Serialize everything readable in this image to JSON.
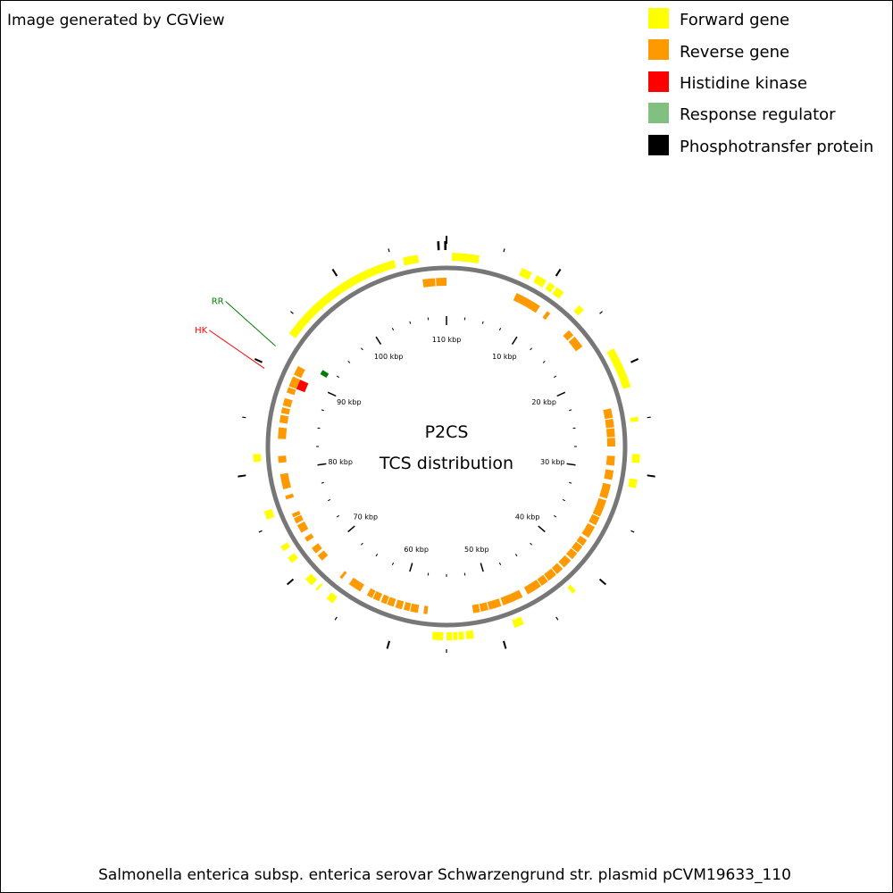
{
  "header": {
    "credit": "Image generated by CGView"
  },
  "legend": {
    "items": [
      {
        "key": "forward",
        "label": "Forward gene",
        "color": "#ffff00"
      },
      {
        "key": "reverse",
        "label": "Reverse gene",
        "color": "#ff9900"
      },
      {
        "key": "hk",
        "label": "Histidine kinase",
        "color": "#ff0000"
      },
      {
        "key": "rr",
        "label": "Response regulator",
        "color": "#80c080"
      },
      {
        "key": "phospho",
        "label": "Phosphotransfer protein",
        "color": "#000000"
      }
    ]
  },
  "map": {
    "title_line1": "P2CS",
    "title_line2": "TCS distribution",
    "footer": "Salmonella enterica subsp. enterica serovar Schwarzengrund str. plasmid pCVM19633_110",
    "backbone_color": "#777777",
    "total_kbp": 110,
    "tick_labels": [
      "10 kbp",
      "20 kbp",
      "30 kbp",
      "40 kbp",
      "50 kbp",
      "60 kbp",
      "70 kbp",
      "80 kbp",
      "90 kbp",
      "100 kbp",
      "110 kbp"
    ],
    "tcs_labels": [
      {
        "text": "RR",
        "color": "#008000",
        "kbp": 91.8
      },
      {
        "text": "HK",
        "color": "#ff0000",
        "kbp": 89.6
      }
    ],
    "forward_genes": [
      [
        0.5,
        3.0
      ],
      [
        7.0,
        8.0
      ],
      [
        8.5,
        9.5
      ],
      [
        9.8,
        10.4
      ],
      [
        10.6,
        11.4
      ],
      [
        13.2,
        13.8
      ],
      [
        18.2,
        22.0
      ],
      [
        24.8,
        25.2
      ],
      [
        28.2,
        29.0
      ],
      [
        30.5,
        31.3
      ],
      [
        42.2,
        42.6
      ],
      [
        47.8,
        48.7
      ],
      [
        52.5,
        53.2
      ],
      [
        53.4,
        53.9
      ],
      [
        54.0,
        54.4
      ],
      [
        54.5,
        55.0
      ],
      [
        55.3,
        56.3
      ],
      [
        66.0,
        66.7
      ],
      [
        67.8,
        68.0
      ],
      [
        68.5,
        69.3
      ],
      [
        71.2,
        71.8
      ],
      [
        72.5,
        73.0
      ],
      [
        75.7,
        76.5
      ],
      [
        81.1,
        81.8
      ],
      [
        93.4,
        105.2
      ],
      [
        106.0,
        107.4
      ]
    ],
    "reverse_genes": [
      [
        7.5,
        10.3
      ],
      [
        11.2,
        11.6
      ],
      [
        14.2,
        14.9
      ],
      [
        15.1,
        16.4
      ],
      [
        23.5,
        24.5
      ],
      [
        24.6,
        25.5
      ],
      [
        25.6,
        26.5
      ],
      [
        26.6,
        27.5
      ],
      [
        28.5,
        29.5
      ],
      [
        30.0,
        31.0
      ],
      [
        31.5,
        33.0
      ],
      [
        33.2,
        35.0
      ],
      [
        35.1,
        36.0
      ],
      [
        36.2,
        37.5
      ],
      [
        37.8,
        38.5
      ],
      [
        38.6,
        39.4
      ],
      [
        39.5,
        40.3
      ],
      [
        40.5,
        41.5
      ],
      [
        41.7,
        42.5
      ],
      [
        42.6,
        43.6
      ],
      [
        43.7,
        44.5
      ],
      [
        44.6,
        46.2
      ],
      [
        46.8,
        49.0
      ],
      [
        49.2,
        50.5
      ],
      [
        50.6,
        51.4
      ],
      [
        51.5,
        52.2
      ],
      [
        57.0,
        57.4
      ],
      [
        58.0,
        58.8
      ],
      [
        58.9,
        59.5
      ],
      [
        59.7,
        60.4
      ],
      [
        60.6,
        61.3
      ],
      [
        61.4,
        62.0
      ],
      [
        62.2,
        62.9
      ],
      [
        63.0,
        63.6
      ],
      [
        64.4,
        65.8
      ],
      [
        66.7,
        67.0
      ],
      [
        69.5,
        70.2
      ],
      [
        70.5,
        71.2
      ],
      [
        72.0,
        72.5
      ],
      [
        73.1,
        74.0
      ],
      [
        74.2,
        74.8
      ],
      [
        74.9,
        75.3
      ],
      [
        76.9,
        77.3
      ],
      [
        78.0,
        79.6
      ],
      [
        80.8,
        81.5
      ],
      [
        83.3,
        84.5
      ],
      [
        85.0,
        85.8
      ],
      [
        86.0,
        86.6
      ],
      [
        86.8,
        87.6
      ],
      [
        88.2,
        88.8
      ],
      [
        88.9,
        90.0
      ],
      [
        90.2,
        91.2
      ],
      [
        107.5,
        108.8
      ],
      [
        108.9,
        110.0
      ]
    ],
    "hk_genes": [
      [
        88.9,
        90.0
      ]
    ],
    "rr_genes": [
      [
        91.6,
        92.2
      ]
    ],
    "phospho_genes": [
      [
        109.2,
        109.4
      ],
      [
        109.8,
        110.0
      ]
    ]
  }
}
